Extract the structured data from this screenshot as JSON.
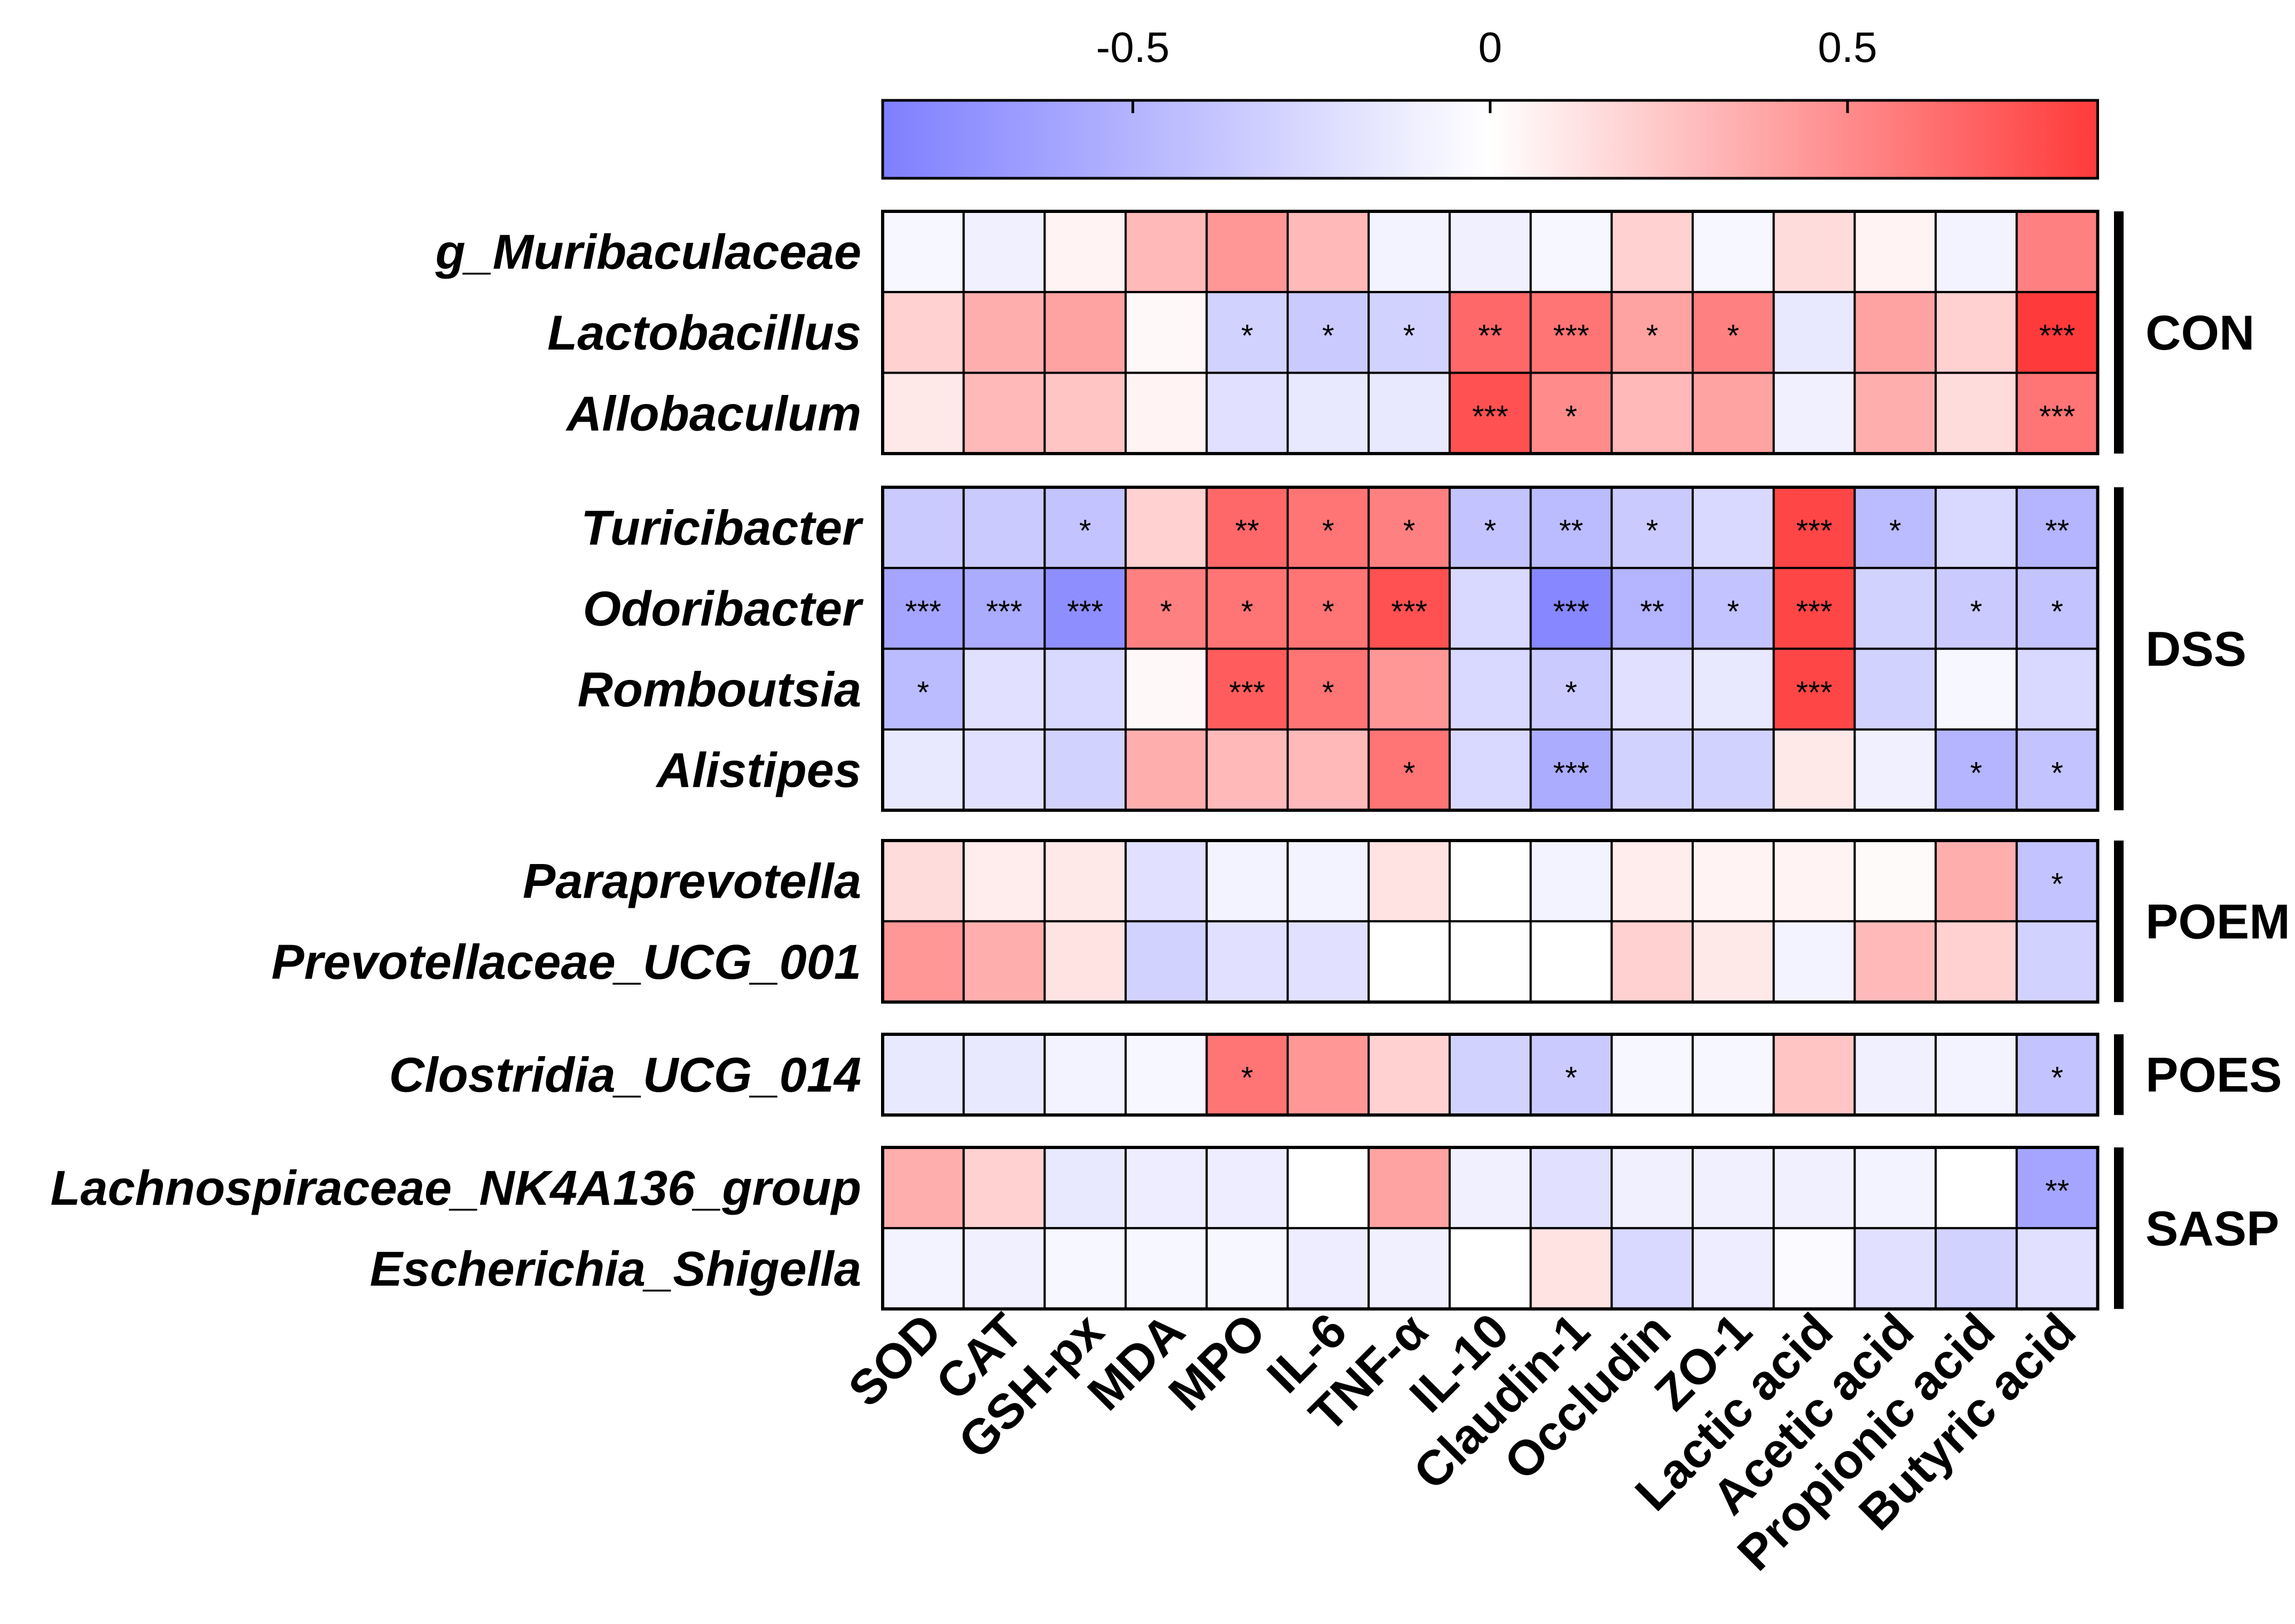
{
  "chart_data": {
    "type": "heatmap",
    "title": "",
    "colorbar": {
      "range": [
        -0.85,
        0.85
      ],
      "ticks": [
        -0.5,
        0,
        0.5
      ],
      "tick_labels": [
        "-0.5",
        "0",
        "0.5"
      ],
      "low_color": "#7f7fff",
      "mid_color": "#ffffff",
      "high_color": "#ff3a3a",
      "position": "top"
    },
    "columns": [
      "SOD",
      "CAT",
      "GSH-px",
      "MDA",
      "MPO",
      "IL-6",
      "TNF-α",
      "IL-10",
      "Claudin-1",
      "Occludin",
      "ZO-1",
      "Lactic acid",
      "Acetic acid",
      "Propionic acid",
      "Butyric acid"
    ],
    "groups": [
      {
        "name": "CON",
        "rows": [
          {
            "name": "g_Muribaculaceae",
            "values": [
              -0.05,
              -0.1,
              0.05,
              0.3,
              0.45,
              0.3,
              -0.08,
              -0.1,
              -0.05,
              0.2,
              -0.05,
              0.15,
              0.05,
              -0.08,
              0.55
            ],
            "sig": [
              "",
              "",
              "",
              "",
              "",
              "",
              "",
              "",
              "",
              "",
              "",
              "",
              "",
              "",
              ""
            ]
          },
          {
            "name": "Lactobacillus",
            "values": [
              0.2,
              0.35,
              0.4,
              0.03,
              -0.3,
              -0.35,
              -0.3,
              0.65,
              0.6,
              0.4,
              0.55,
              -0.15,
              0.4,
              0.2,
              0.85
            ],
            "sig": [
              "",
              "",
              "",
              "",
              "*",
              "*",
              "*",
              "**",
              "***",
              "*",
              "*",
              "",
              "",
              "",
              "***"
            ]
          },
          {
            "name": "Allobaculum",
            "values": [
              0.1,
              0.3,
              0.25,
              0.05,
              -0.2,
              -0.15,
              -0.15,
              0.75,
              0.5,
              0.3,
              0.4,
              -0.1,
              0.35,
              0.15,
              0.6
            ],
            "sig": [
              "",
              "",
              "",
              "",
              "",
              "",
              "",
              "***",
              "*",
              "",
              "",
              "",
              "",
              "",
              "***"
            ]
          }
        ]
      },
      {
        "name": "DSS",
        "rows": [
          {
            "name": "Turicibacter",
            "values": [
              -0.35,
              -0.35,
              -0.4,
              0.2,
              0.65,
              0.6,
              0.55,
              -0.4,
              -0.45,
              -0.35,
              -0.25,
              0.8,
              -0.45,
              -0.25,
              -0.5
            ],
            "sig": [
              "",
              "",
              "*",
              "",
              "**",
              "*",
              "*",
              "*",
              "**",
              "*",
              "",
              "***",
              "*",
              "",
              "**"
            ]
          },
          {
            "name": "Odoribacter",
            "values": [
              -0.6,
              -0.55,
              -0.75,
              0.55,
              0.6,
              0.6,
              0.75,
              -0.25,
              -0.8,
              -0.5,
              -0.4,
              0.8,
              -0.3,
              -0.35,
              -0.4
            ],
            "sig": [
              "***",
              "***",
              "***",
              "*",
              "*",
              "*",
              "***",
              "",
              "***",
              "**",
              "*",
              "***",
              "",
              "*",
              "*"
            ]
          },
          {
            "name": "Romboutsia",
            "values": [
              -0.45,
              -0.2,
              -0.25,
              0.03,
              0.7,
              0.6,
              0.45,
              -0.25,
              -0.35,
              -0.2,
              -0.15,
              0.8,
              -0.3,
              -0.05,
              -0.25
            ],
            "sig": [
              "*",
              "",
              "",
              "",
              "***",
              "*",
              "",
              "",
              "*",
              "",
              "",
              "***",
              "",
              "",
              ""
            ]
          },
          {
            "name": "Alistipes",
            "values": [
              -0.15,
              -0.2,
              -0.3,
              0.35,
              0.3,
              0.3,
              0.6,
              -0.25,
              -0.55,
              -0.3,
              -0.3,
              0.1,
              -0.1,
              -0.5,
              -0.4
            ],
            "sig": [
              "",
              "",
              "",
              "",
              "",
              "",
              "*",
              "",
              "***",
              "",
              "",
              "",
              "",
              "*",
              "*"
            ]
          }
        ]
      },
      {
        "name": "POEM",
        "rows": [
          {
            "name": "Paraprevotella",
            "values": [
              0.15,
              0.08,
              0.1,
              -0.2,
              -0.08,
              -0.08,
              0.12,
              0.0,
              -0.08,
              0.08,
              0.05,
              0.05,
              0.02,
              0.35,
              -0.4
            ],
            "sig": [
              "",
              "",
              "",
              "",
              "",
              "",
              "",
              "",
              "",
              "",
              "",
              "",
              "",
              "",
              "*"
            ]
          },
          {
            "name": "Prevotellaceae_UCG_001",
            "values": [
              0.45,
              0.35,
              0.12,
              -0.3,
              -0.2,
              -0.2,
              0.0,
              0.0,
              0.0,
              0.2,
              0.1,
              -0.08,
              0.3,
              0.2,
              -0.3
            ],
            "sig": [
              "",
              "",
              "",
              "",
              "",
              "",
              "",
              "",
              "",
              "",
              "",
              "",
              "",
              "",
              ""
            ]
          }
        ]
      },
      {
        "name": "POES",
        "rows": [
          {
            "name": "Clostridia_UCG_014",
            "values": [
              -0.15,
              -0.15,
              -0.08,
              -0.05,
              0.6,
              0.45,
              0.2,
              -0.3,
              -0.35,
              -0.05,
              -0.05,
              0.25,
              -0.1,
              -0.08,
              -0.4
            ],
            "sig": [
              "",
              "",
              "",
              "",
              "*",
              "",
              "",
              "",
              "*",
              "",
              "",
              "",
              "",
              "",
              "*"
            ]
          }
        ]
      },
      {
        "name": "SASP",
        "rows": [
          {
            "name": "Lachnospiraceae_NK4A136_group",
            "values": [
              0.35,
              0.2,
              -0.15,
              -0.12,
              -0.12,
              0.0,
              0.4,
              -0.1,
              -0.2,
              -0.1,
              -0.1,
              -0.1,
              -0.08,
              0.0,
              -0.6
            ],
            "sig": [
              "",
              "",
              "",
              "",
              "",
              "",
              "",
              "",
              "",
              "",
              "",
              "",
              "",
              "",
              "**"
            ]
          },
          {
            "name": "Escherichia_Shigella",
            "values": [
              -0.08,
              -0.1,
              -0.05,
              -0.05,
              -0.05,
              -0.12,
              -0.1,
              0.0,
              0.12,
              -0.25,
              -0.12,
              -0.03,
              -0.2,
              -0.3,
              -0.2
            ],
            "sig": [
              "",
              "",
              "",
              "",
              "",
              "",
              "",
              "",
              "",
              "",
              "",
              "",
              "",
              "",
              ""
            ]
          }
        ]
      }
    ]
  }
}
